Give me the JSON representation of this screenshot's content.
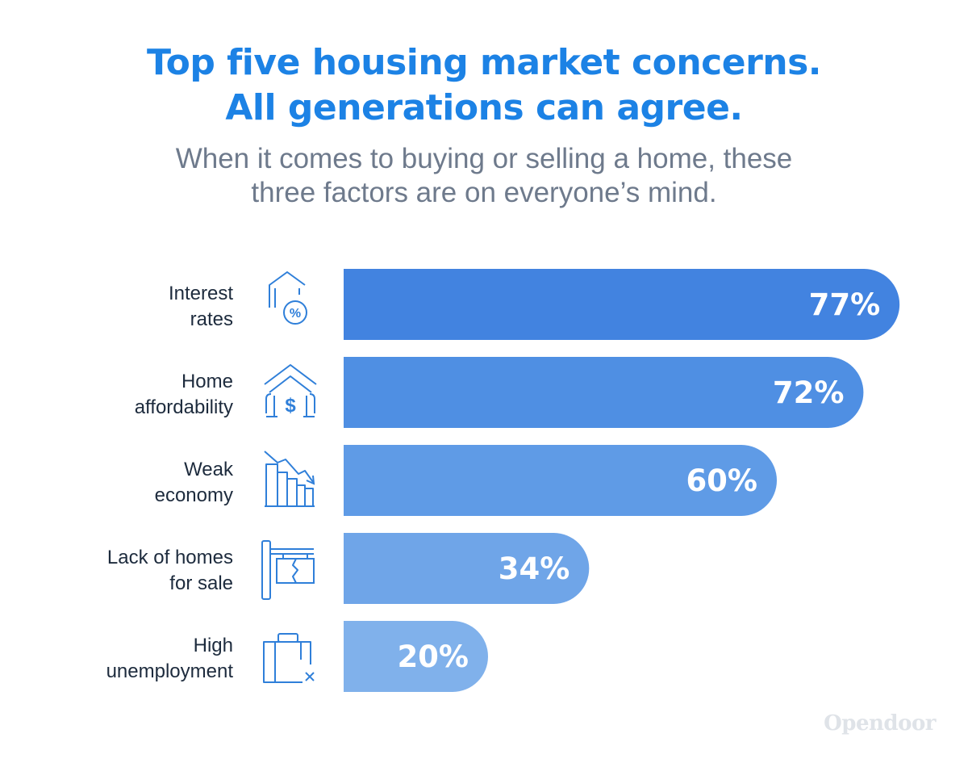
{
  "header": {
    "title_line1": "Top five housing market concerns.",
    "title_line2": "All generations can agree.",
    "subtitle_line1": "When it comes to buying or selling a home, these",
    "subtitle_line2": "three factors are on everyone’s mind."
  },
  "chart_data": {
    "type": "bar",
    "orientation": "horizontal",
    "title": "Top five housing market concerns. All generations can agree.",
    "subtitle": "When it comes to buying or selling a home, these three factors are on everyone’s mind.",
    "xlabel": "",
    "ylabel": "",
    "unit": "%",
    "grid": false,
    "categories": [
      {
        "lines": [
          "Interest",
          "rates"
        ],
        "icon": "house-percent-icon"
      },
      {
        "lines": [
          "Home",
          "affordability"
        ],
        "icon": "house-dollar-icon"
      },
      {
        "lines": [
          "Weak",
          "economy"
        ],
        "icon": "declining-chart-icon"
      },
      {
        "lines": [
          "Lack of homes",
          "for sale"
        ],
        "icon": "broken-sign-icon"
      },
      {
        "lines": [
          "High",
          "unemployment"
        ],
        "icon": "briefcase-x-icon"
      }
    ],
    "values": [
      77,
      72,
      60,
      34,
      20
    ],
    "labels": [
      "77%",
      "72%",
      "60%",
      "34%",
      "20%"
    ],
    "colors": [
      "#4283e0",
      "#4f8fe3",
      "#5f9be6",
      "#6fa5e8",
      "#80b1eb"
    ]
  },
  "brand": {
    "logo_text": "Opendoor"
  }
}
